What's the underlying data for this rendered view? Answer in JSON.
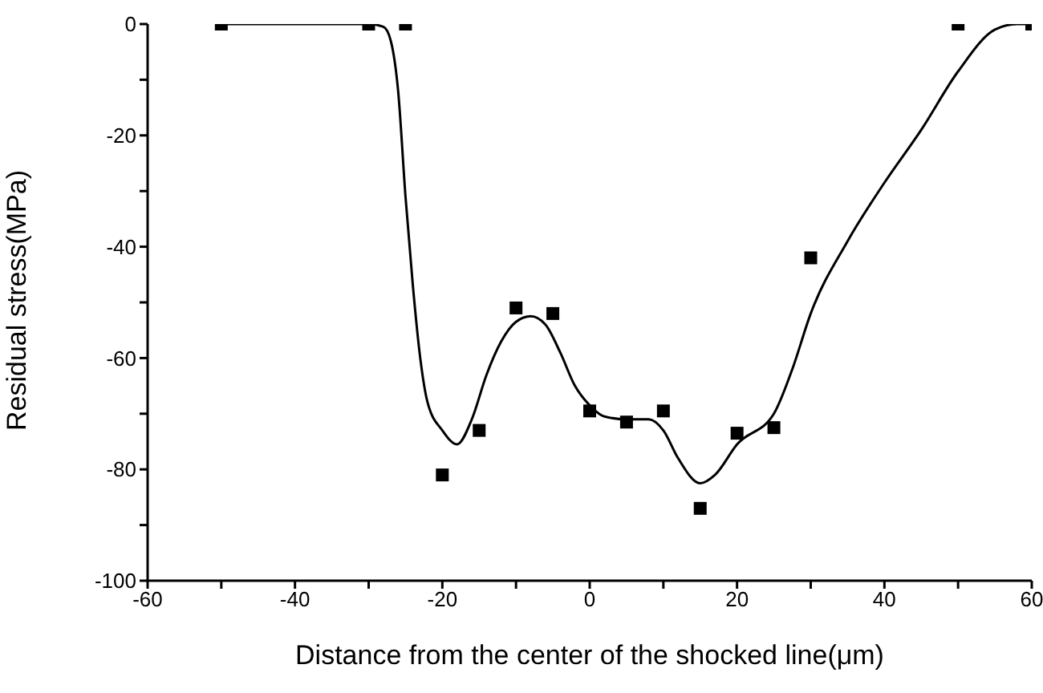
{
  "chart_data": {
    "type": "scatter",
    "xlabel": "Distance from the center of the shocked line(μm)",
    "ylabel": "Residual stress(MPa)",
    "xlim": [
      -60,
      60
    ],
    "xticks": [
      -60,
      {
        "value": -50,
        "label": null
      },
      -40,
      {
        "value": -30,
        "label": null
      },
      -20,
      {
        "value": -10,
        "label": null
      },
      0,
      {
        "value": 10,
        "label": null
      },
      20,
      {
        "value": 30,
        "label": null
      },
      40,
      {
        "value": 50,
        "label": null
      },
      60
    ],
    "ylim": [
      -100,
      0
    ],
    "yticks": [
      -100,
      {
        "value": -90,
        "label": null
      },
      -80,
      {
        "value": -70,
        "label": null
      },
      -60,
      {
        "value": -50,
        "label": null
      },
      -40,
      {
        "value": -30,
        "label": null
      },
      -20,
      {
        "value": -10,
        "label": null
      },
      0
    ],
    "grid": false,
    "series": [
      {
        "type": "line",
        "marker": "none",
        "line_style": "solid",
        "color": "#000000",
        "x": [
          -50,
          -40,
          -30,
          -28,
          -27,
          -26,
          -25,
          -24,
          -23,
          -22,
          -20,
          -18,
          -16,
          -14,
          -12,
          -10,
          -8,
          -6,
          -4,
          -2,
          0,
          2,
          5,
          8,
          10,
          12,
          15,
          17,
          20,
          25,
          27.5,
          30,
          35,
          40,
          45,
          50,
          55,
          58,
          60
        ],
        "values": [
          0,
          0,
          0,
          -0.5,
          -3,
          -12,
          -31,
          -47,
          -60,
          -68,
          -73,
          -75.5,
          -71,
          -63,
          -57,
          -53.5,
          -52.5,
          -54,
          -59,
          -65,
          -68.5,
          -70.5,
          -71,
          -71,
          -73,
          -78,
          -82.5,
          -81,
          -75.5,
          -70,
          -62,
          -52,
          -39,
          -28.5,
          -19,
          -8.5,
          -1,
          0,
          0
        ]
      },
      {
        "marker": "square",
        "color": "#000000",
        "x": [
          -50,
          -30,
          -25,
          -20,
          -15,
          -10,
          -5,
          0,
          5,
          10,
          15,
          20,
          25,
          30,
          50,
          60
        ],
        "values": [
          0,
          0,
          0,
          -81,
          -73,
          -51,
          -52,
          -69.5,
          -71.5,
          -69.5,
          -87,
          -73.5,
          -72.5,
          -42,
          0,
          0
        ]
      }
    ]
  }
}
